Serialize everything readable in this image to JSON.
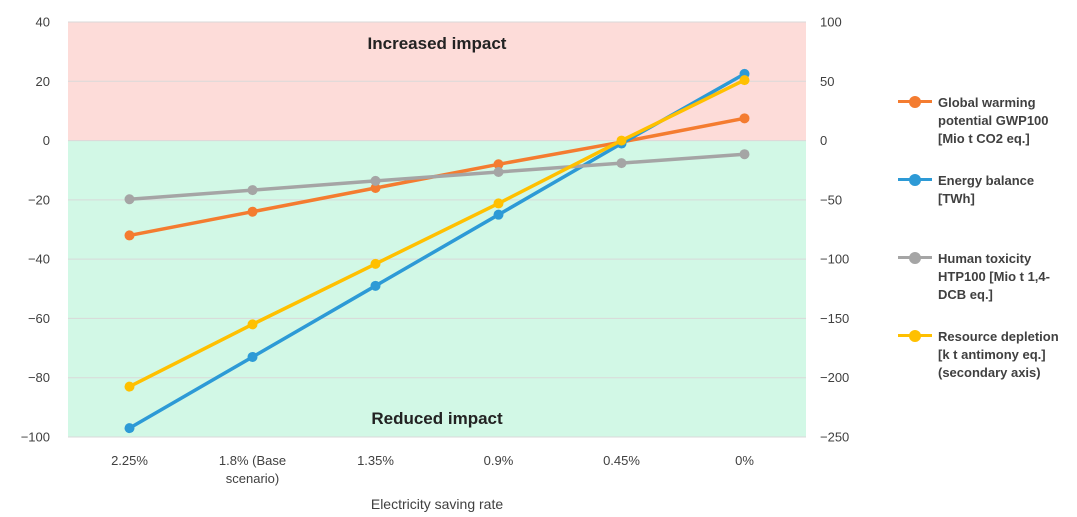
{
  "chart_data": {
    "type": "line",
    "xlabel": "Electricity saving rate",
    "categories": [
      "2.25%",
      "1.8% (Base scenario)",
      "1.35%",
      "0.9%",
      "0.45%",
      "0%"
    ],
    "category_lines": [
      [
        "2.25%"
      ],
      [
        "1.8% (Base",
        "scenario)"
      ],
      [
        "1.35%"
      ],
      [
        "0.9%"
      ],
      [
        "0.45%"
      ],
      [
        "0%"
      ]
    ],
    "ylim": [
      -100,
      40
    ],
    "y_ticks": [
      40,
      20,
      0,
      -20,
      -40,
      -60,
      -80,
      -100
    ],
    "y_tick_labels": [
      "40",
      "20",
      "0",
      "−20",
      "−40",
      "−60",
      "−80",
      "−100"
    ],
    "y2lim": [
      -250,
      100
    ],
    "y2_ticks": [
      100,
      50,
      0,
      -50,
      -100,
      -150,
      -200,
      -250
    ],
    "y2_tick_labels": [
      "100",
      "50",
      "0",
      "−50",
      "−100",
      "−150",
      "−200",
      "−250"
    ],
    "grid": true,
    "legend_position": "right",
    "zones": {
      "increased_label": "Increased impact",
      "reduced_label": "Reduced impact",
      "increased_color": "#fddcd9",
      "reduced_color": "#d2f8e6"
    },
    "series": [
      {
        "name": "Global warming potential GWP100 [Mio t CO2 eq.]",
        "legend_lines": [
          "Global warming",
          "potential GWP100",
          "[Mio t CO2 eq.]"
        ],
        "color": "#f47c30",
        "axis": "primary",
        "values": [
          -32,
          -24,
          -16,
          -8,
          -0.5,
          7.5
        ]
      },
      {
        "name": "Energy balance [TWh]",
        "legend_lines": [
          "Energy balance",
          "[TWh]"
        ],
        "color": "#2d9ad6",
        "axis": "primary",
        "values": [
          -97,
          -73,
          -49,
          -25,
          -1,
          22.5
        ]
      },
      {
        "name": "Human toxicity HTP100 [Mio t 1,4-DCB eq.]",
        "legend_lines": [
          "Human toxicity",
          "HTP100 [Mio t 1,4-",
          "DCB eq.]"
        ],
        "color": "#a5a5a5",
        "axis": "primary",
        "values": [
          -19.8,
          -16.7,
          -13.6,
          -10.6,
          -7.6,
          -4.6
        ]
      },
      {
        "name": "Resource depletion [k t antimony eq.] (secondary axis)",
        "legend_lines": [
          "Resource depletion",
          "[k t antimony eq.]",
          "(secondary axis)"
        ],
        "color": "#ffc000",
        "axis": "secondary",
        "values": [
          -207.5,
          -155,
          -104,
          -53,
          0,
          51
        ]
      }
    ]
  }
}
